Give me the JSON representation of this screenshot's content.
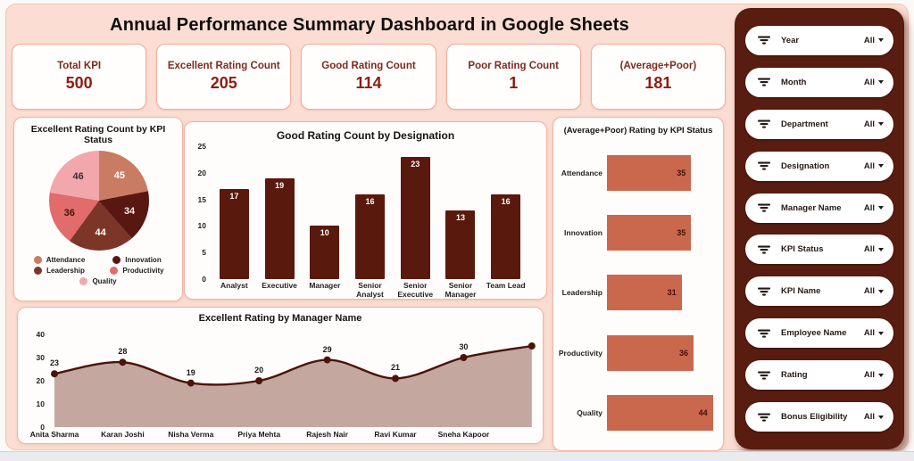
{
  "title": "Annual Performance Summary Dashboard in Google Sheets",
  "kpi_cards": [
    {
      "label": "Total KPI",
      "value": "500"
    },
    {
      "label": "Excellent Rating Count",
      "value": "205"
    },
    {
      "label": "Good Rating Count",
      "value": "114"
    },
    {
      "label": "Poor Rating Count",
      "value": "1"
    },
    {
      "label": "(Average+Poor)",
      "value": "181"
    }
  ],
  "filters": {
    "icon": "filter-funnel-icon",
    "value_label": "All",
    "items": [
      "Year",
      "Month",
      "Department",
      "Designation",
      "Manager Name",
      "KPI Status",
      "KPI Name",
      "Employee Name",
      "Rating",
      "Bonus Eligibility"
    ]
  },
  "chart_data": [
    {
      "type": "pie",
      "title": "Excellent Rating Count by KPI Status",
      "labels": [
        "Attendance",
        "Innovation",
        "Leadership",
        "Productivity",
        "Quality"
      ],
      "values": [
        45,
        34,
        44,
        36,
        46
      ],
      "colors": [
        "#c97c61",
        "#591712",
        "#7c3627",
        "#e26b6b",
        "#f2a7ac"
      ],
      "slice_label_colors": [
        "#ffffff",
        "#f6e9e3",
        "#ffffff",
        "#47120c",
        "#3a2e31"
      ],
      "legend_position": "bottom",
      "start_angle_deg": 0,
      "direction": "clockwise"
    },
    {
      "type": "bar",
      "title": "Good Rating Count by Designation",
      "categories": [
        "Analyst",
        "Executive",
        "Manager",
        "Senior Analyst",
        "Senior Executive",
        "Senior Manager",
        "Team Lead"
      ],
      "values": [
        17,
        19,
        10,
        16,
        23,
        13,
        16
      ],
      "ylim": [
        0,
        25
      ],
      "yticks": [
        25,
        20,
        15,
        10,
        5,
        0
      ],
      "bar_color": "#5a190d",
      "value_label_color": "#ffffff",
      "grid": false
    },
    {
      "type": "bar_horizontal",
      "title": "(Average+Poor) Rating by KPI Status",
      "categories": [
        "Attendance",
        "Innovation",
        "Leadership",
        "Productivity",
        "Quality"
      ],
      "values": [
        35,
        35,
        31,
        36,
        44
      ],
      "bar_color": "#c9684d",
      "value_label_color": "#44100a",
      "xlim": [
        0,
        46
      ],
      "grid": false
    },
    {
      "type": "area",
      "title": "Excellent Rating by Manager Name",
      "categories": [
        "Anita Sharma",
        "Karan Joshi",
        "Nisha Verma",
        "Priya Mehta",
        "Rajesh Nair",
        "Ravi Kumar",
        "Sneha Kapoor",
        ""
      ],
      "values": [
        23,
        28,
        19,
        20,
        29,
        21,
        30,
        35
      ],
      "data_label_shown": [
        true,
        true,
        true,
        true,
        true,
        true,
        true,
        false
      ],
      "note": "8th point visible at right edge, its category label is cut off",
      "ylim": [
        0,
        40
      ],
      "yticks": [
        40,
        30,
        20,
        10,
        0
      ],
      "fill_color": "#c4a89f",
      "line_color": "#4c130b",
      "marker": "circle",
      "grid": false
    }
  ],
  "theme": {
    "background": "#fbddd3",
    "card_border": "#eeae9b",
    "kpi_label_color": "#7c2b1e",
    "kpi_value_color": "#8e1c12",
    "panel_color": "#591c10",
    "accent_dark_maroon": "#5a190d",
    "accent_salmon": "#c9684d"
  }
}
